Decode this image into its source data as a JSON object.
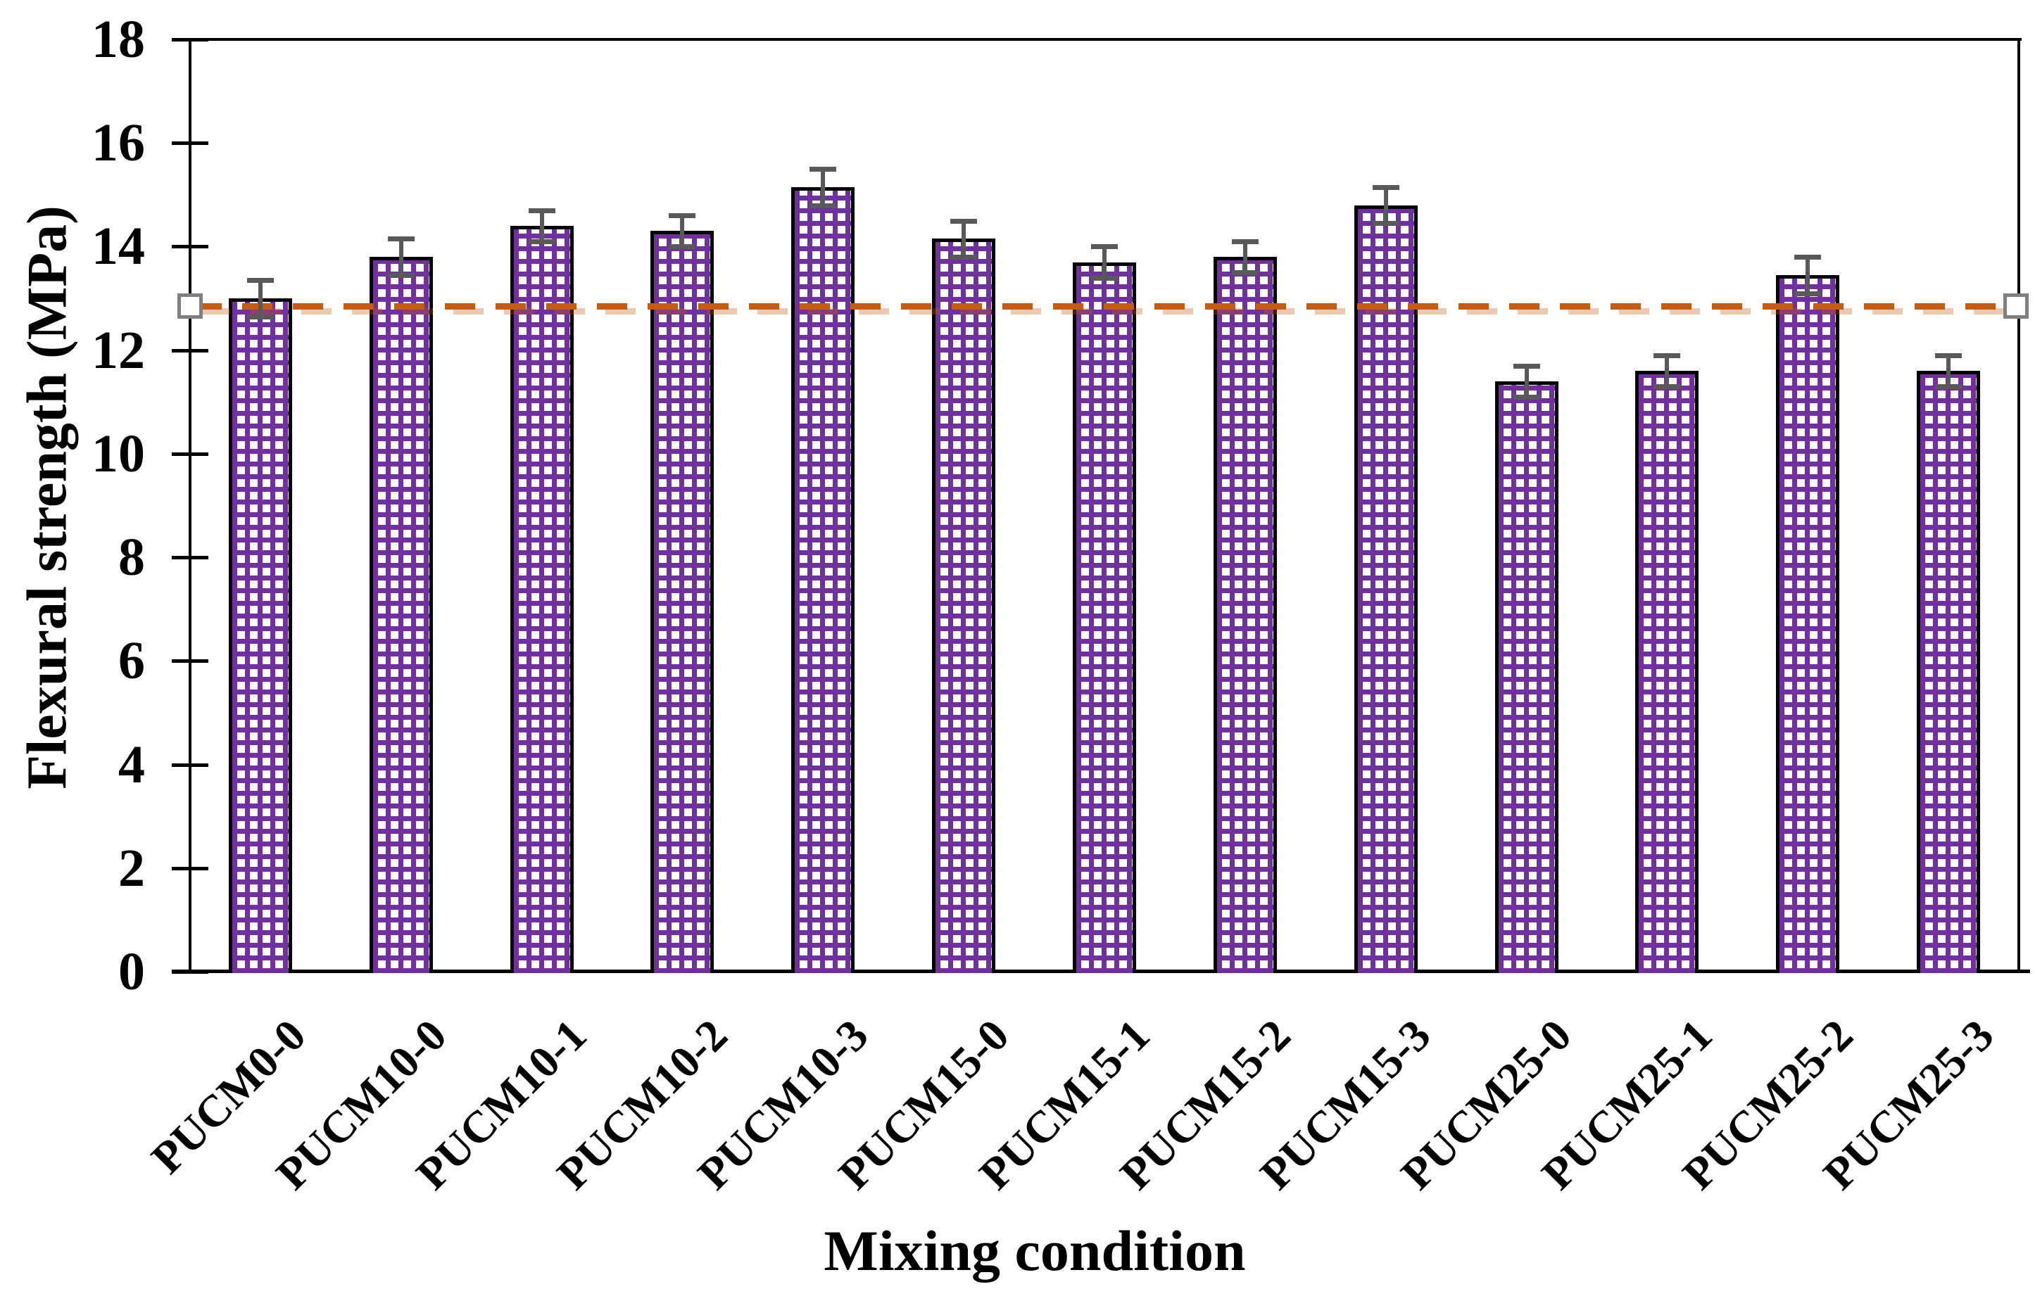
{
  "chart_data": {
    "type": "bar",
    "title": "",
    "xlabel": "Mixing condition",
    "ylabel": "Flexural strength (MPa)",
    "categories": [
      "PUCM0-0",
      "PUCM10-0",
      "PUCM10-1",
      "PUCM10-2",
      "PUCM10-3",
      "PUCM15-0",
      "PUCM15-1",
      "PUCM15-2",
      "PUCM15-3",
      "PUCM25-0",
      "PUCM25-1",
      "PUCM25-2",
      "PUCM25-3"
    ],
    "values": [
      13.0,
      13.8,
      14.4,
      14.3,
      15.15,
      14.15,
      13.7,
      13.8,
      14.8,
      11.4,
      11.6,
      13.45,
      11.6
    ],
    "errors": [
      0.35,
      0.35,
      0.3,
      0.3,
      0.35,
      0.35,
      0.3,
      0.3,
      0.35,
      0.3,
      0.3,
      0.35,
      0.3
    ],
    "ylim": [
      0,
      18
    ],
    "ytick_labels": [
      "0",
      "2",
      "4",
      "6",
      "8",
      "10",
      "12",
      "14",
      "16",
      "18"
    ],
    "grid": false,
    "legend": "none",
    "bar_pattern": "purple-square-grid-hatch",
    "reference_line": {
      "value": 12.85,
      "style": "dashed",
      "marker": "open-square-at-both-axis-ends"
    }
  },
  "colors": {
    "bar_hatch": "#7030A0",
    "bar_fill": "#ffffff",
    "bar_border": "#000000",
    "reference_line": "#C55A11",
    "reference_line_shadow": "rgba(197,90,17,0.32)",
    "error_bar": "#595959",
    "marker_border": "#808080",
    "marker_fill": "#ffffff",
    "axis": "#000000",
    "text": "#000000"
  }
}
